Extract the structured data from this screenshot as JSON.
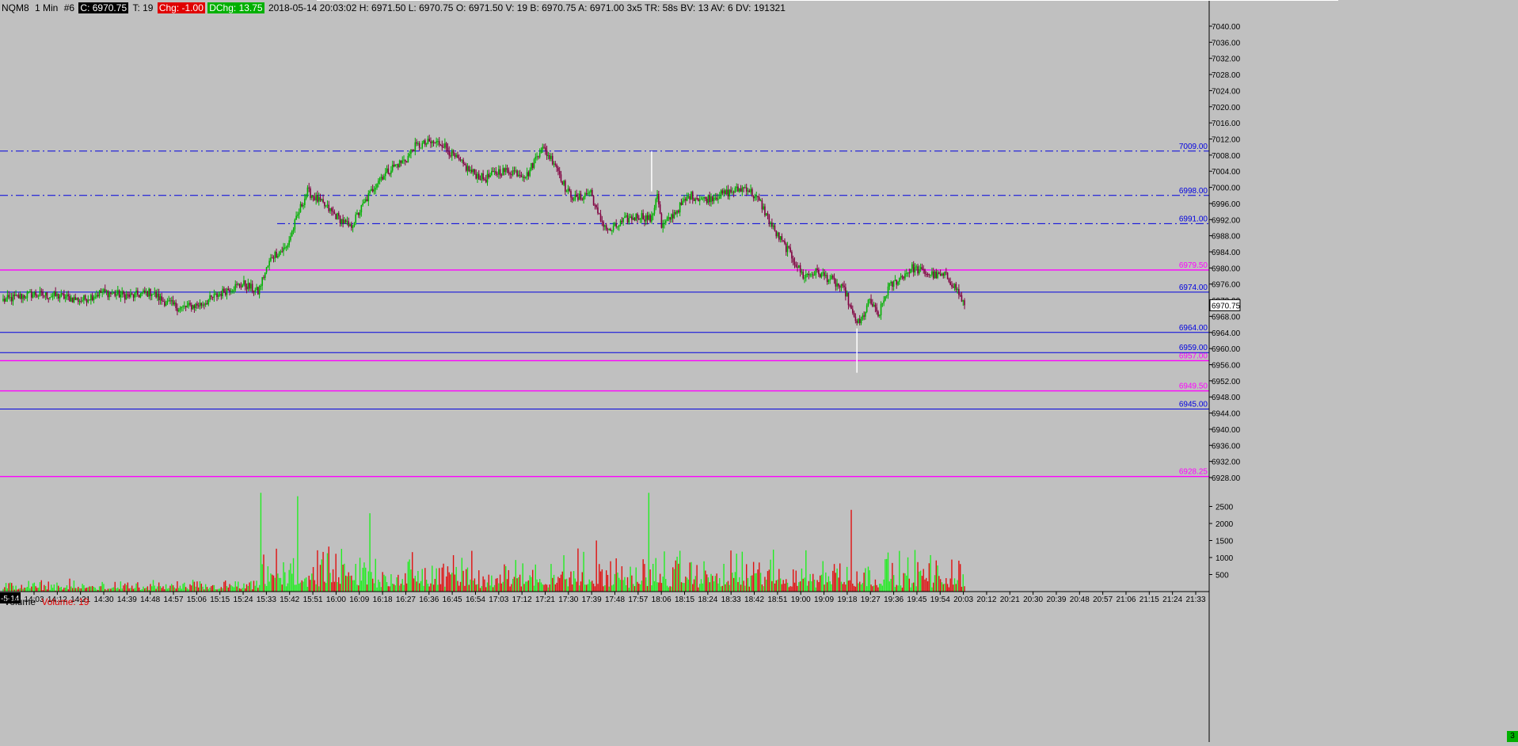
{
  "header": {
    "symbol": "NQM8",
    "interval": "1 Min",
    "chart_number": "#6",
    "close": "C: 6970.75",
    "ticks": "T: 19",
    "change": "Chg: -1.00",
    "daily_change": "DChg: 13.75",
    "details": "2018-05-14 20:03:02 H: 6971.50 L: 6970.75 O: 6971.50 V: 19 B: 6970.75 A: 6971.00 3x5 TR: 58s BV: 13 AV: 6 DV: 191321"
  },
  "volume_panel": {
    "name": "Volume",
    "value_label": "Volume: 19"
  },
  "x_axis": {
    "date_label": "-5-14",
    "labels": [
      "14:03",
      "14:12",
      "14:21",
      "14:30",
      "14:39",
      "14:48",
      "14:57",
      "15:06",
      "15:15",
      "15:24",
      "15:33",
      "15:42",
      "15:51",
      "16:00",
      "16:09",
      "16:18",
      "16:27",
      "16:36",
      "16:45",
      "16:54",
      "17:03",
      "17:12",
      "17:21",
      "17:30",
      "17:39",
      "17:48",
      "17:57",
      "18:06",
      "18:15",
      "18:24",
      "18:33",
      "18:42",
      "18:51",
      "19:00",
      "19:09",
      "19:18",
      "19:27",
      "19:36",
      "19:45",
      "19:54",
      "20:03",
      "20:12",
      "20:21",
      "20:30",
      "20:39",
      "20:48",
      "20:57",
      "21:06",
      "21:15",
      "21:24",
      "21:33"
    ]
  },
  "price_axis": {
    "ticks": [
      "7040.00",
      "7036.00",
      "7032.00",
      "7028.00",
      "7024.00",
      "7020.00",
      "7016.00",
      "7012.00",
      "7008.00",
      "7004.00",
      "7000.00",
      "6996.00",
      "6992.00",
      "6988.00",
      "6984.00",
      "6980.00",
      "6976.00",
      "6972.00",
      "6968.00",
      "6964.00",
      "6960.00",
      "6956.00",
      "6952.00",
      "6948.00",
      "6944.00",
      "6940.00",
      "6936.00",
      "6932.00",
      "6928.00"
    ],
    "current_price": "6970.75"
  },
  "volume_axis": {
    "ticks": [
      "2500",
      "2000",
      "1500",
      "1000",
      "500"
    ]
  },
  "corner_indicator": "3",
  "colors": {
    "background": "#c0c0c0",
    "up_candle": "#00b000",
    "down_candle": "#800040",
    "volume_up": "#22ee22",
    "volume_down": "#e01010",
    "blue_level": "#0000e0",
    "magenta_level": "#ff00ff"
  },
  "chart_data": {
    "type": "candlestick",
    "title": "NQM8 1 Min",
    "y_range": [
      6926,
      7044
    ],
    "volume_range": [
      0,
      3000
    ],
    "x_labels": [
      "14:03",
      "20:03"
    ],
    "levels": [
      {
        "price": 7009.0,
        "label": "7009.00",
        "color": "blue",
        "style": "dashdot"
      },
      {
        "price": 6998.0,
        "label": "6998.00",
        "color": "blue",
        "style": "dashdot"
      },
      {
        "price": 6991.0,
        "label": "6991.00",
        "color": "blue",
        "style": "dashdot"
      },
      {
        "price": 6979.5,
        "label": "6979.50",
        "color": "magenta",
        "style": "solid"
      },
      {
        "price": 6974.0,
        "label": "6974.00",
        "color": "blue",
        "style": "solid"
      },
      {
        "price": 6964.0,
        "label": "6964.00",
        "color": "blue",
        "style": "solid"
      },
      {
        "price": 6959.0,
        "label": "6959.00",
        "color": "blue",
        "style": "solid"
      },
      {
        "price": 6957.0,
        "label": "6957.00",
        "color": "magenta",
        "style": "solid"
      },
      {
        "price": 6949.5,
        "label": "6949.50",
        "color": "magenta",
        "style": "solid"
      },
      {
        "price": 6945.0,
        "label": "6945.00",
        "color": "blue",
        "style": "solid"
      },
      {
        "price": 6928.25,
        "label": "6928.25",
        "color": "magenta",
        "style": "solid"
      }
    ],
    "price_path": [
      [
        0,
        6972
      ],
      [
        20,
        6973.5
      ],
      [
        40,
        6973
      ],
      [
        55,
        6972
      ],
      [
        70,
        6974
      ],
      [
        90,
        6973
      ],
      [
        105,
        6974
      ],
      [
        112,
        6972
      ],
      [
        125,
        6970
      ],
      [
        140,
        6971
      ],
      [
        150,
        6973
      ],
      [
        160,
        6975
      ],
      [
        170,
        6976
      ],
      [
        180,
        6974
      ],
      [
        184,
        6978
      ],
      [
        190,
        6983
      ],
      [
        200,
        6985
      ],
      [
        205,
        6990
      ],
      [
        210,
        6995
      ],
      [
        215,
        6999
      ],
      [
        225,
        6996
      ],
      [
        235,
        6993
      ],
      [
        245,
        6990
      ],
      [
        255,
        6996
      ],
      [
        265,
        7002
      ],
      [
        275,
        7005
      ],
      [
        285,
        7007
      ],
      [
        290,
        7010
      ],
      [
        300,
        7011
      ],
      [
        310,
        7011
      ],
      [
        320,
        7007
      ],
      [
        330,
        7004
      ],
      [
        340,
        7002
      ],
      [
        350,
        7004
      ],
      [
        360,
        7004
      ],
      [
        370,
        7003
      ],
      [
        380,
        7010
      ],
      [
        390,
        7006
      ],
      [
        398,
        6999
      ],
      [
        405,
        6997
      ],
      [
        415,
        6999
      ],
      [
        420,
        6993
      ],
      [
        428,
        6989
      ],
      [
        440,
        6992
      ],
      [
        450,
        6993
      ],
      [
        458,
        6992
      ],
      [
        462,
        6999
      ],
      [
        465,
        6990
      ],
      [
        475,
        6994
      ],
      [
        485,
        6998
      ],
      [
        495,
        6997
      ],
      [
        505,
        6998
      ],
      [
        515,
        6999
      ],
      [
        525,
        7000
      ],
      [
        530,
        6998
      ],
      [
        535,
        6996
      ],
      [
        545,
        6989
      ],
      [
        555,
        6984
      ],
      [
        565,
        6978
      ],
      [
        575,
        6979
      ],
      [
        585,
        6977
      ],
      [
        595,
        6974
      ],
      [
        600,
        6968
      ],
      [
        605,
        6966
      ],
      [
        612,
        6972
      ],
      [
        618,
        6968
      ],
      [
        625,
        6975
      ],
      [
        635,
        6978
      ],
      [
        642,
        6980
      ],
      [
        650,
        6979
      ],
      [
        660,
        6978
      ],
      [
        666,
        6978
      ],
      [
        673,
        6975
      ],
      [
        679,
        6970.75
      ]
    ],
    "volume_spikes": [
      {
        "i": 182,
        "v": 2900,
        "up": true
      },
      {
        "i": 208,
        "v": 2800,
        "up": true
      },
      {
        "i": 259,
        "v": 2300,
        "up": true
      },
      {
        "i": 456,
        "v": 2900,
        "up": true
      },
      {
        "i": 419,
        "v": 1500,
        "up": false
      },
      {
        "i": 599,
        "v": 2400,
        "up": false
      }
    ]
  }
}
